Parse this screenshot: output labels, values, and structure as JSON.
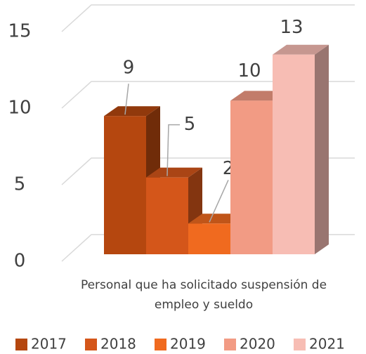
{
  "chart_data": {
    "type": "bar3d",
    "categories": [
      "Personal que ha solicitado suspensión de empleo y sueldo"
    ],
    "series": [
      {
        "name": "2017",
        "color": "#b5470f",
        "values": [
          9
        ]
      },
      {
        "name": "2018",
        "color": "#d4561a",
        "values": [
          5
        ]
      },
      {
        "name": "2019",
        "color": "#f06a1f",
        "values": [
          2
        ]
      },
      {
        "name": "2020",
        "color": "#f29b84",
        "values": [
          10
        ]
      },
      {
        "name": "2021",
        "color": "#f7bdb4",
        "values": [
          13
        ]
      }
    ],
    "ylim": [
      0,
      15
    ],
    "yticks": [
      0,
      5,
      10,
      15
    ],
    "grid": true,
    "legend": "bottom"
  }
}
